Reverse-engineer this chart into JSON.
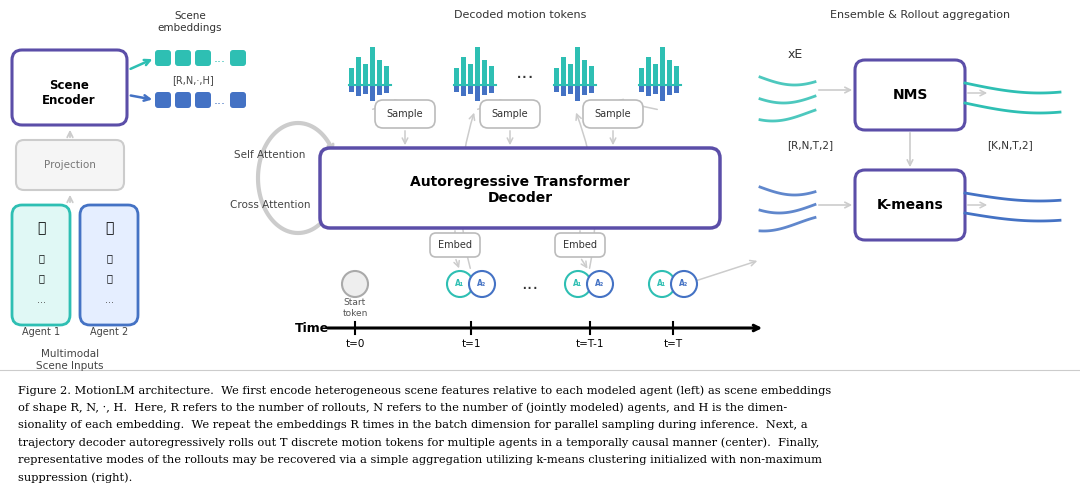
{
  "fig_width": 10.8,
  "fig_height": 4.92,
  "bg_color": "#ffffff",
  "caption_lines": [
    "Figure 2. MotionLM architecture.  We first encode heterogeneous scene features relative to each modeled agent (left) as scene embeddings",
    "of shape R, N, ·, H.  Here, R refers to the number of rollouts, N refers to the number of (jointly modeled) agents, and H is the dimen-",
    "sionality of each embedding.  We repeat the embeddings R times in the batch dimension for parallel sampling during inference.  Next, a",
    "trajectory decoder autoregressively rolls out T discrete motion tokens for multiple agents in a temporally causal manner (center).  Finally,",
    "representative modes of the rollouts may be recovered via a simple aggregation utilizing k-means clustering initialized with non-maximum",
    "suppression (right)."
  ],
  "purple": "#5B4EA8",
  "teal": "#2EBFB3",
  "blue": "#4472C4",
  "gray": "#AAAAAA",
  "light_gray": "#CCCCCC",
  "dark": "#333333"
}
